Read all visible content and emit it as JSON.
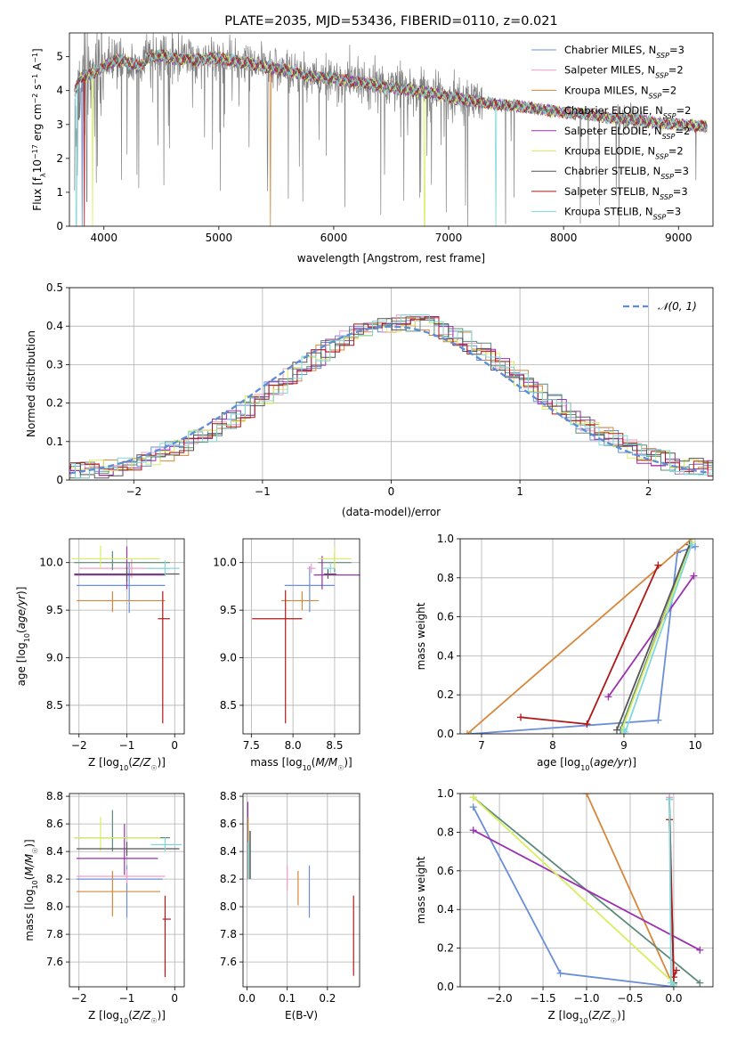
{
  "chart_data": [
    {
      "id": "spectrum",
      "type": "line",
      "title": "PLATE=2035, MJD=53436, FIBERID=0110, z=0.021",
      "xlabel": "wavelength [Angstrom, rest frame]",
      "ylabel_parts": [
        "Flux [f",
        "λ",
        "10",
        "−17",
        " erg cm",
        "−2",
        " s",
        "−1",
        " A",
        "−1",
        "]"
      ],
      "xlim": [
        3700,
        9300
      ],
      "ylim": [
        0,
        5.7
      ],
      "xticks": [
        4000,
        5000,
        6000,
        7000,
        8000,
        9000
      ],
      "yticks": [
        0,
        1,
        2,
        3,
        4,
        5
      ],
      "data_color": "#808080",
      "continuum": {
        "x": [
          3750,
          3800,
          3900,
          4000,
          4100,
          4200,
          4300,
          4400,
          4500,
          4600,
          4800,
          5000,
          5200,
          5400,
          5600,
          5800,
          6000,
          6200,
          6400,
          6600,
          6800,
          7000,
          7200,
          7400,
          7600,
          7800,
          8000,
          8200,
          8400,
          8600,
          8800,
          9000,
          9200
        ],
        "y": [
          4.0,
          4.4,
          4.5,
          4.7,
          4.9,
          4.85,
          4.7,
          5.0,
          5.05,
          4.95,
          4.9,
          4.95,
          4.85,
          4.7,
          4.6,
          4.4,
          4.35,
          4.25,
          4.15,
          4.05,
          3.95,
          3.8,
          3.7,
          3.6,
          3.55,
          3.45,
          3.35,
          3.3,
          3.2,
          3.15,
          3.05,
          3.0,
          2.95
        ]
      },
      "series": [
        {
          "label": "Chabrier MILES, N",
          "sub": "SSP",
          "label_end": "=3",
          "color": "#6a8fd8"
        },
        {
          "label": "Salpeter MILES, N",
          "sub": "SSP",
          "label_end": "=2",
          "color": "#f29ec8"
        },
        {
          "label": "Kroupa MILES, N",
          "sub": "SSP",
          "label_end": "=2",
          "color": "#d7873a"
        },
        {
          "label": "Chabrier ELODIE, N",
          "sub": "SSP",
          "label_end": "=2",
          "color": "#5d8c7a"
        },
        {
          "label": "Salpeter ELODIE, N",
          "sub": "SSP",
          "label_end": "=2",
          "color": "#9b30b0"
        },
        {
          "label": "Kroupa ELODIE, N",
          "sub": "SSP",
          "label_end": "=2",
          "color": "#d8ee60"
        },
        {
          "label": "Chabrier STELIB, N",
          "sub": "SSP",
          "label_end": "=3",
          "color": "#555555"
        },
        {
          "label": "Salpeter STELIB, N",
          "sub": "SSP",
          "label_end": "=3",
          "color": "#b01818"
        },
        {
          "label": "Kroupa STELIB, N",
          "sub": "SSP",
          "label_end": "=3",
          "color": "#7fd8dc"
        }
      ],
      "legend": "right",
      "grid": false
    },
    {
      "id": "residuals",
      "type": "step-histogram",
      "xlabel": "(data-model)/error",
      "ylabel": "Normed distribution",
      "xlim": [
        -2.5,
        2.5
      ],
      "ylim": [
        0,
        0.5
      ],
      "xticks": [
        -2,
        -1,
        0,
        1,
        2
      ],
      "yticks": [
        0.0,
        0.1,
        0.2,
        0.3,
        0.4,
        0.5
      ],
      "grid": true,
      "legend_label": "𝒩(0, 1)",
      "legend_color": "#5b8ed6",
      "legend": "top-right",
      "bin_width": 0.11,
      "colors": [
        "#6a8fd8",
        "#f29ec8",
        "#d7873a",
        "#5d8c7a",
        "#9b30b0",
        "#d8ee60",
        "#555555",
        "#b01818",
        "#7fd8dc"
      ]
    },
    {
      "id": "age-vs-Z",
      "type": "errorbar",
      "xlabel_parts": [
        "Z [log",
        "10",
        "(",
        "Z/Z",
        "☉",
        ")]"
      ],
      "ylabel_parts": [
        "age  [log",
        "10",
        "(",
        "age/yr",
        ")]"
      ],
      "xlim": [
        -2.2,
        0.2
      ],
      "ylim": [
        8.2,
        10.25
      ],
      "xticks": [
        -2,
        -1,
        0
      ],
      "yticks": [
        8.5,
        9.0,
        9.5,
        10.0
      ],
      "tick_labels_y": [
        "8.5",
        "9.0",
        "9.5",
        "10.0"
      ],
      "grid": true,
      "points": [
        {
          "x": -0.95,
          "xerr": [
            1.1,
            0.75
          ],
          "y": 9.76,
          "yerr": [
            0.29,
            0.24
          ],
          "color": "#6a8fd8"
        },
        {
          "x": -0.9,
          "xerr": [
            1.1,
            0.75
          ],
          "y": 9.94,
          "yerr": [
            0.1,
            0.1
          ],
          "color": "#f29ec8"
        },
        {
          "x": -1.3,
          "xerr": [
            0.75,
            1.1
          ],
          "y": 9.6,
          "yerr": [
            0.12,
            0.1
          ],
          "color": "#d7873a"
        },
        {
          "x": -1.3,
          "xerr": [
            0.8,
            1.2
          ],
          "y": 10.0,
          "yerr": [
            0.08,
            0.12
          ],
          "color": "#5d8c7a"
        },
        {
          "x": -1.0,
          "xerr": [
            1.1,
            0.8
          ],
          "y": 9.87,
          "yerr": [
            0.15,
            0.3
          ],
          "color": "#9b30b0"
        },
        {
          "x": -1.55,
          "xerr": [
            0.6,
            1.25
          ],
          "y": 10.04,
          "yerr": [
            0.1,
            0.14
          ],
          "color": "#d8ee60"
        },
        {
          "x": -1.0,
          "xerr": [
            1.1,
            1.1
          ],
          "y": 9.88,
          "yerr": [
            0.08,
            0.08
          ],
          "color": "#555555"
        },
        {
          "x": -0.25,
          "xerr": [
            0.1,
            0.15
          ],
          "y": 9.41,
          "yerr": [
            1.1,
            0.29
          ],
          "color": "#b01818"
        },
        {
          "x": -0.2,
          "xerr": [
            0.4,
            0.3
          ],
          "y": 9.94,
          "yerr": [
            0.08,
            0.08
          ],
          "color": "#7fd8dc"
        }
      ]
    },
    {
      "id": "age-vs-mass",
      "type": "errorbar",
      "xlabel_parts": [
        "mass [log",
        "10",
        "(",
        "M/M",
        "☉",
        ")]"
      ],
      "xlim": [
        7.4,
        8.8
      ],
      "ylim": [
        8.2,
        10.25
      ],
      "xticks": [
        7.5,
        8.0,
        8.5
      ],
      "yticks": [
        8.5,
        9.0,
        9.5,
        10.0
      ],
      "tick_labels_x": [
        "7.5",
        "8.0",
        "8.5"
      ],
      "tick_labels_y": [
        "8.5",
        "9.0",
        "9.5",
        "10.0"
      ],
      "grid": true,
      "points": [
        {
          "x": 8.2,
          "xerr": [
            0.3,
            0.3
          ],
          "y": 9.76,
          "yerr": [
            0.28,
            0.2
          ],
          "color": "#6a8fd8"
        },
        {
          "x": 8.22,
          "xerr": [
            0.05,
            0.05
          ],
          "y": 9.94,
          "yerr": [
            0.05,
            0.05
          ],
          "color": "#f29ec8"
        },
        {
          "x": 8.11,
          "xerr": [
            0.25,
            0.2
          ],
          "y": 9.6,
          "yerr": [
            0.1,
            0.1
          ],
          "color": "#d7873a"
        },
        {
          "x": 8.5,
          "xerr": [
            0.2,
            0.2
          ],
          "y": 10.0,
          "yerr": [
            0.1,
            0.1
          ],
          "color": "#5d8c7a"
        },
        {
          "x": 8.35,
          "xerr": [
            0.1,
            0.45
          ],
          "y": 9.87,
          "yerr": [
            0.15,
            0.2
          ],
          "color": "#9b30b0"
        },
        {
          "x": 8.5,
          "xerr": [
            0.2,
            0.2
          ],
          "y": 10.04,
          "yerr": [
            0.1,
            0.12
          ],
          "color": "#d8ee60"
        },
        {
          "x": 8.42,
          "xerr": [
            0.05,
            0.1
          ],
          "y": 9.88,
          "yerr": [
            0.05,
            0.05
          ],
          "color": "#555555"
        },
        {
          "x": 7.91,
          "xerr": [
            0.4,
            0.2
          ],
          "y": 9.41,
          "yerr": [
            1.1,
            0.3
          ],
          "color": "#b01818"
        },
        {
          "x": 8.45,
          "xerr": [
            0.1,
            0.05
          ],
          "y": 9.94,
          "yerr": [
            0.05,
            0.05
          ],
          "color": "#7fd8dc"
        }
      ]
    },
    {
      "id": "mass-weight-vs-age",
      "type": "line",
      "xlabel_parts": [
        "age  [log",
        "10",
        "(",
        "age/yr",
        ")]"
      ],
      "ylabel": "mass weight",
      "xlim": [
        6.7,
        10.25
      ],
      "ylim": [
        0,
        1
      ],
      "xticks": [
        7,
        8,
        9,
        10
      ],
      "yticks": [
        0.0,
        0.2,
        0.4,
        0.6,
        0.8,
        1.0
      ],
      "tick_labels_y": [
        "0.0",
        "0.2",
        "0.4",
        "0.6",
        "0.8",
        "1.0"
      ],
      "grid": true,
      "series": [
        {
          "color": "#6a8fd8",
          "x": [
            6.85,
            9.48,
            9.75,
            10.0
          ],
          "y": [
            0.0,
            0.07,
            0.93,
            0.96
          ]
        },
        {
          "color": "#f29ec8",
          "x": [
            8.95,
            9.95
          ],
          "y": [
            0.02,
            0.98
          ]
        },
        {
          "color": "#d7873a",
          "x": [
            6.8,
            9.95
          ],
          "y": [
            0.0,
            1.0
          ]
        },
        {
          "color": "#5d8c7a",
          "x": [
            8.95,
            9.95
          ],
          "y": [
            0.02,
            0.98
          ]
        },
        {
          "color": "#9b30b0",
          "x": [
            8.78,
            9.98
          ],
          "y": [
            0.19,
            0.81
          ]
        },
        {
          "color": "#d8ee60",
          "x": [
            8.97,
            9.95
          ],
          "y": [
            0.02,
            0.98
          ]
        },
        {
          "color": "#555555",
          "x": [
            8.9,
            9.92
          ],
          "y": [
            0.02,
            0.97
          ]
        },
        {
          "color": "#b01818",
          "x": [
            7.55,
            8.48,
            9.48
          ],
          "y": [
            0.085,
            0.05,
            0.865
          ]
        },
        {
          "color": "#7fd8dc",
          "x": [
            9.0,
            9.02,
            9.95
          ],
          "y": [
            0.02,
            0.01,
            0.97
          ]
        }
      ]
    },
    {
      "id": "mass-vs-Z",
      "type": "errorbar",
      "xlabel_parts": [
        "Z [log",
        "10",
        "(",
        "Z/Z",
        "☉",
        ")]"
      ],
      "ylabel_parts": [
        "mass [log",
        "10",
        "(",
        "M/M",
        "☉",
        ")]"
      ],
      "xlim": [
        -2.2,
        0.2
      ],
      "ylim": [
        7.42,
        8.82
      ],
      "xticks": [
        -2,
        -1,
        0
      ],
      "yticks": [
        7.6,
        7.8,
        8.0,
        8.2,
        8.4,
        8.6,
        8.8
      ],
      "tick_labels_y": [
        "7.6",
        "7.8",
        "8.0",
        "8.2",
        "8.4",
        "8.6",
        "8.8"
      ],
      "grid": true,
      "points": [
        {
          "x": -1.0,
          "xerr": [
            1.05,
            0.75
          ],
          "y": 8.2,
          "yerr": [
            0.28,
            0.1
          ],
          "color": "#6a8fd8"
        },
        {
          "x": -1.0,
          "xerr": [
            1.05,
            0.8
          ],
          "y": 8.22,
          "yerr": [
            0.05,
            0.05
          ],
          "color": "#f29ec8"
        },
        {
          "x": -1.3,
          "xerr": [
            0.75,
            1.0
          ],
          "y": 8.11,
          "yerr": [
            0.18,
            0.15
          ],
          "color": "#d7873a"
        },
        {
          "x": -1.3,
          "xerr": [
            0.8,
            1.2
          ],
          "y": 8.5,
          "yerr": [
            0.1,
            0.2
          ],
          "color": "#5d8c7a"
        },
        {
          "x": -1.05,
          "xerr": [
            1.0,
            0.7
          ],
          "y": 8.35,
          "yerr": [
            0.12,
            0.25
          ],
          "color": "#9b30b0"
        },
        {
          "x": -1.55,
          "xerr": [
            0.55,
            1.25
          ],
          "y": 8.5,
          "yerr": [
            0.1,
            0.15
          ],
          "color": "#d8ee60"
        },
        {
          "x": -1.0,
          "xerr": [
            1.05,
            1.1
          ],
          "y": 8.42,
          "yerr": [
            0.05,
            0.05
          ],
          "color": "#555555"
        },
        {
          "x": -0.2,
          "xerr": [
            0.05,
            0.12
          ],
          "y": 7.91,
          "yerr": [
            0.42,
            0.17
          ],
          "color": "#b01818"
        },
        {
          "x": -0.2,
          "xerr": [
            0.3,
            0.35
          ],
          "y": 8.45,
          "yerr": [
            0.05,
            0.05
          ],
          "color": "#7fd8dc"
        }
      ]
    },
    {
      "id": "mass-vs-ebv",
      "type": "errorbar",
      "xlabel": "E(B-V)",
      "xlim": [
        -0.01,
        0.28
      ],
      "ylim": [
        7.42,
        8.82
      ],
      "xticks": [
        0.0,
        0.1,
        0.2
      ],
      "yticks": [
        7.6,
        7.8,
        8.0,
        8.2,
        8.4,
        8.6,
        8.8
      ],
      "tick_labels_x": [
        "0.0",
        "0.1",
        "0.2"
      ],
      "tick_labels_y": [
        "7.6",
        "7.8",
        "8.0",
        "8.2",
        "8.4",
        "8.6",
        "8.8"
      ],
      "grid": true,
      "points": [
        {
          "x": 0.155,
          "y": 8.1,
          "yerr": [
            0.18,
            0.2
          ],
          "color": "#6a8fd8"
        },
        {
          "x": 0.1,
          "y": 8.22,
          "yerr": [
            0.1,
            0.08
          ],
          "color": "#f29ec8"
        },
        {
          "x": 0.127,
          "y": 8.11,
          "yerr": [
            0.1,
            0.15
          ],
          "color": "#d7873a"
        },
        {
          "x": 0.005,
          "y": 8.4,
          "yerr": [
            0.2,
            0.15
          ],
          "color": "#5d8c7a"
        },
        {
          "x": 0.002,
          "y": 8.5,
          "yerr": [
            0.3,
            0.26
          ],
          "color": "#9b30b0"
        },
        {
          "x": 0.004,
          "y": 8.5,
          "yerr": [
            0.3,
            0.15
          ],
          "color": "#d8ee60"
        },
        {
          "x": 0.008,
          "y": 8.4,
          "yerr": [
            0.2,
            0.15
          ],
          "color": "#555555"
        },
        {
          "x": 0.265,
          "y": 7.8,
          "yerr": [
            0.3,
            0.28
          ],
          "color": "#b01818"
        },
        {
          "x": 0.003,
          "y": 8.35,
          "yerr": [
            0.15,
            0.12
          ],
          "color": "#7fd8dc"
        }
      ]
    },
    {
      "id": "mass-weight-vs-Z",
      "type": "line",
      "xlabel_parts": [
        "Z [log",
        "10",
        "(",
        "Z/Z",
        "☉",
        ")]"
      ],
      "ylabel": "mass weight",
      "xlim": [
        -2.45,
        0.45
      ],
      "ylim": [
        0,
        1
      ],
      "xticks": [
        -2.0,
        -1.5,
        -1.0,
        -0.5,
        0.0
      ],
      "tick_labels_x": [
        "−2.0",
        "−1.5",
        "−1.0",
        "−0.5",
        "0.0"
      ],
      "yticks": [
        0.0,
        0.2,
        0.4,
        0.6,
        0.8,
        1.0
      ],
      "tick_labels_y": [
        "0.0",
        "0.2",
        "0.4",
        "0.6",
        "0.8",
        "1.0"
      ],
      "grid": true,
      "series": [
        {
          "color": "#6a8fd8",
          "x": [
            -2.3,
            -1.3,
            0.0
          ],
          "y": [
            0.93,
            0.07,
            0.0
          ]
        },
        {
          "color": "#f29ec8",
          "x": [
            -0.05,
            0.0
          ],
          "y": [
            0.98,
            0.02
          ]
        },
        {
          "color": "#d7873a",
          "x": [
            -1.0,
            0.0
          ],
          "y": [
            1.0,
            0.0
          ]
        },
        {
          "color": "#5d8c7a",
          "x": [
            -2.3,
            0.3
          ],
          "y": [
            0.98,
            0.02
          ]
        },
        {
          "color": "#9b30b0",
          "x": [
            -2.3,
            0.3
          ],
          "y": [
            0.81,
            0.19
          ]
        },
        {
          "color": "#d8ee60",
          "x": [
            -2.3,
            0.0
          ],
          "y": [
            0.98,
            0.02
          ]
        },
        {
          "color": "#555555",
          "x": [
            -0.05,
            0.0
          ],
          "y": [
            0.97,
            0.02
          ]
        },
        {
          "color": "#b01818",
          "x": [
            -0.05,
            0.0,
            0.03
          ],
          "y": [
            0.865,
            0.05,
            0.085
          ]
        },
        {
          "color": "#7fd8dc",
          "x": [
            -0.05,
            -0.03,
            0.0
          ],
          "y": [
            0.97,
            0.02,
            0.01
          ]
        }
      ]
    }
  ]
}
